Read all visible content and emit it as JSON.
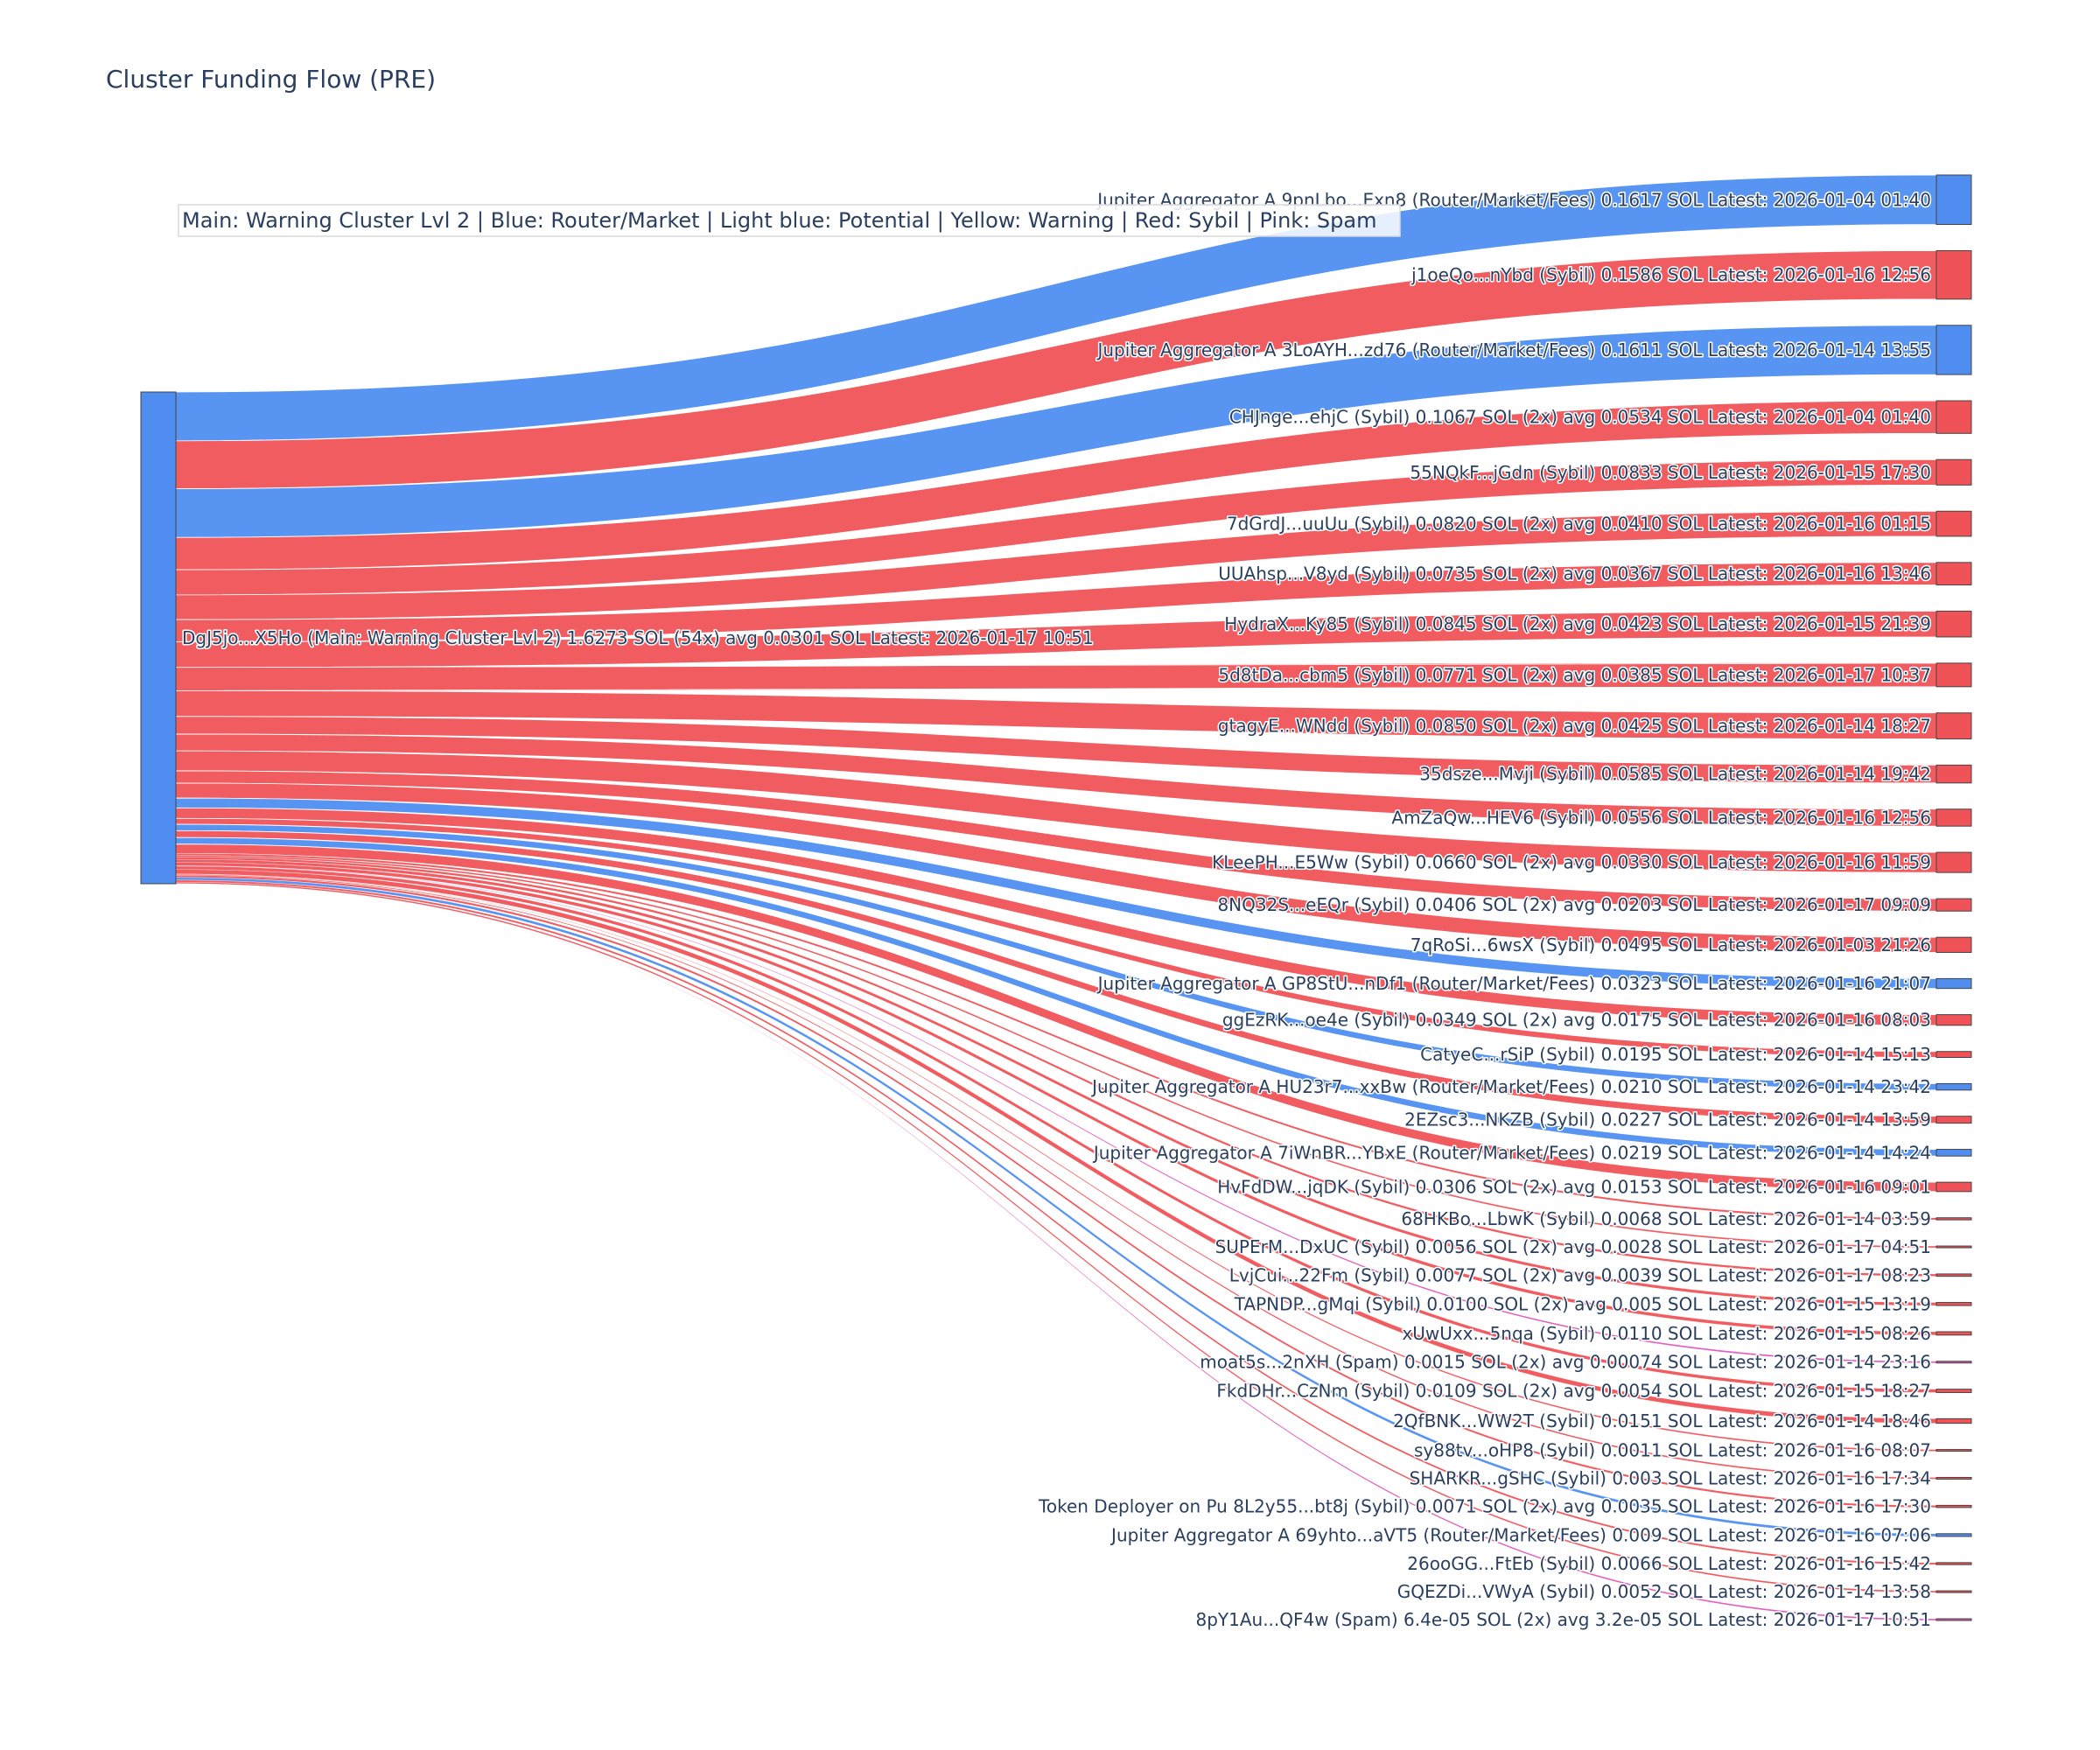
{
  "chart_data": {
    "type": "sankey",
    "title": "Cluster Funding Flow (PRE)",
    "legend_note": "Main: Warning Cluster Lvl 2  |  Blue: Router/Market | Light blue: Potential | Yellow: Warning | Red: Sybil | Pink: Spam",
    "colors": {
      "router": "#4f8ef0",
      "sybil": "#ef5357",
      "spam": "#e055b8",
      "main": "#4f8ef0"
    },
    "source": {
      "label": "DgJ5jo...X5Ho (Main: Warning Cluster Lvl 2) 1.6273 SOL (54x) avg 0.0301 SOL Latest: 2026-01-17 10:51",
      "category": "main",
      "value": 1.6273
    },
    "targets": [
      {
        "label": "Jupiter Aggregator A 9pnLbo...Exn8 (Router/Market/Fees) 0.1617 SOL Latest: 2026-01-04 01:40",
        "value": 0.1617,
        "category": "router"
      },
      {
        "label": "j1oeQo...nYbd (Sybil) 0.1586 SOL Latest: 2026-01-16 12:56",
        "value": 0.1586,
        "category": "sybil"
      },
      {
        "label": "Jupiter Aggregator A 3LoAYH...zd76 (Router/Market/Fees) 0.1611 SOL Latest: 2026-01-14 13:55",
        "value": 0.1611,
        "category": "router"
      },
      {
        "label": "CHJnge...ehjC (Sybil) 0.1067 SOL (2x) avg 0.0534 SOL Latest: 2026-01-04 01:40",
        "value": 0.1067,
        "category": "sybil"
      },
      {
        "label": "55NQkF...jGdn (Sybil) 0.0833 SOL Latest: 2026-01-15 17:30",
        "value": 0.0833,
        "category": "sybil"
      },
      {
        "label": "7dGrdJ...uuUu (Sybil) 0.0820 SOL (2x) avg 0.0410 SOL Latest: 2026-01-16 01:15",
        "value": 0.082,
        "category": "sybil"
      },
      {
        "label": "UUAhsp...V8yd (Sybil) 0.0735 SOL (2x) avg 0.0367 SOL Latest: 2026-01-16 13:46",
        "value": 0.0735,
        "category": "sybil"
      },
      {
        "label": "HydraX...Ky85 (Sybil) 0.0845 SOL (2x) avg 0.0423 SOL Latest: 2026-01-15 21:39",
        "value": 0.0845,
        "category": "sybil"
      },
      {
        "label": "5d8tDa...cbm5 (Sybil) 0.0771 SOL (2x) avg 0.0385 SOL Latest: 2026-01-17 10:37",
        "value": 0.0771,
        "category": "sybil"
      },
      {
        "label": "gtagyE...WNdd (Sybil) 0.0850 SOL (2x) avg 0.0425 SOL Latest: 2026-01-14 18:27",
        "value": 0.085,
        "category": "sybil"
      },
      {
        "label": "35dsze...Mvji (Sybil) 0.0585 SOL Latest: 2026-01-14 19:42",
        "value": 0.0585,
        "category": "sybil"
      },
      {
        "label": "AmZaQw...HEV6 (Sybil) 0.0556 SOL Latest: 2026-01-16 12:56",
        "value": 0.0556,
        "category": "sybil"
      },
      {
        "label": "KLeePH...E5Ww (Sybil) 0.0660 SOL (2x) avg 0.0330 SOL Latest: 2026-01-16 11:59",
        "value": 0.066,
        "category": "sybil"
      },
      {
        "label": "8NQ32S...eEQr (Sybil) 0.0406 SOL (2x) avg 0.0203 SOL Latest: 2026-01-17 09:09",
        "value": 0.0406,
        "category": "sybil"
      },
      {
        "label": "7qRoSi...6wsX (Sybil) 0.0495 SOL Latest: 2026-01-03 21:26",
        "value": 0.0495,
        "category": "sybil"
      },
      {
        "label": "Jupiter Aggregator A GP8StU...nDf1 (Router/Market/Fees) 0.0323 SOL Latest: 2026-01-16 21:07",
        "value": 0.0323,
        "category": "router"
      },
      {
        "label": "ggEzRK...oe4e (Sybil) 0.0349 SOL (2x) avg 0.0175 SOL Latest: 2026-01-16 08:03",
        "value": 0.0349,
        "category": "sybil"
      },
      {
        "label": "CatyeC...rSiP (Sybil) 0.0195 SOL Latest: 2026-01-14 15:13",
        "value": 0.0195,
        "category": "sybil"
      },
      {
        "label": "Jupiter Aggregator A HU23r7...xxBw (Router/Market/Fees) 0.0210 SOL Latest: 2026-01-14 23:42",
        "value": 0.021,
        "category": "router"
      },
      {
        "label": "2EZsc3...NKZB (Sybil) 0.0227 SOL Latest: 2026-01-14 13:59",
        "value": 0.0227,
        "category": "sybil"
      },
      {
        "label": "Jupiter Aggregator A 7iWnBR...YBxE (Router/Market/Fees) 0.0219 SOL Latest: 2026-01-14 14:24",
        "value": 0.0219,
        "category": "router"
      },
      {
        "label": "HvFdDW...jqDK (Sybil) 0.0306 SOL (2x) avg 0.0153 SOL Latest: 2026-01-16 09:01",
        "value": 0.0306,
        "category": "sybil"
      },
      {
        "label": "68HKBo...LbwK (Sybil) 0.0068 SOL Latest: 2026-01-14 03:59",
        "value": 0.0068,
        "category": "sybil"
      },
      {
        "label": "SUPErM...DxUC (Sybil) 0.0056 SOL (2x) avg 0.0028 SOL Latest: 2026-01-17 04:51",
        "value": 0.0056,
        "category": "sybil"
      },
      {
        "label": "LvjCui...22Fm (Sybil) 0.0077 SOL (2x) avg 0.0039 SOL Latest: 2026-01-17 08:23",
        "value": 0.0077,
        "category": "sybil"
      },
      {
        "label": "TAPNDP...gMqi (Sybil) 0.0100 SOL (2x) avg 0.005 SOL Latest: 2026-01-15 13:19",
        "value": 0.01,
        "category": "sybil"
      },
      {
        "label": "xUwUxx...5nqa (Sybil) 0.0110 SOL Latest: 2026-01-15 08:26",
        "value": 0.011,
        "category": "sybil"
      },
      {
        "label": "moat5s...2nXH (Spam) 0.0015 SOL (2x) avg 0.00074 SOL Latest: 2026-01-14 23:16",
        "value": 0.0015,
        "category": "spam"
      },
      {
        "label": "FkdDHr...CzNm (Sybil) 0.0109 SOL (2x) avg 0.0054 SOL Latest: 2026-01-15 18:27",
        "value": 0.0109,
        "category": "sybil"
      },
      {
        "label": "2QfBNK...WW2T (Sybil) 0.0151 SOL Latest: 2026-01-14 18:46",
        "value": 0.0151,
        "category": "sybil"
      },
      {
        "label": "sy88tv...oHP8 (Sybil) 0.0011 SOL Latest: 2026-01-16 08:07",
        "value": 0.0011,
        "category": "sybil"
      },
      {
        "label": "SHARKR...gSHC (Sybil) 0.003 SOL Latest: 2026-01-16 17:34",
        "value": 0.003,
        "category": "sybil"
      },
      {
        "label": "Token Deployer on Pu 8L2y55...bt8j (Sybil) 0.0071 SOL (2x) avg 0.0035 SOL Latest: 2026-01-16 17:30",
        "value": 0.0071,
        "category": "sybil"
      },
      {
        "label": "Jupiter Aggregator A 69yhto...aVT5 (Router/Market/Fees) 0.009 SOL Latest: 2026-01-16 07:06",
        "value": 0.009,
        "category": "router"
      },
      {
        "label": "26ooGG...FtEb (Sybil) 0.0066 SOL Latest: 2026-01-16 15:42",
        "value": 0.0066,
        "category": "sybil"
      },
      {
        "label": "GQEZDi...VWyA (Sybil) 0.0052 SOL Latest: 2026-01-14 13:58",
        "value": 0.0052,
        "category": "sybil"
      },
      {
        "label": "8pY1Au...QF4w (Spam) 6.4e-05 SOL (2x) avg 3.2e-05 SOL Latest: 2026-01-17 10:51",
        "value": 6.4e-05,
        "category": "spam"
      }
    ]
  }
}
